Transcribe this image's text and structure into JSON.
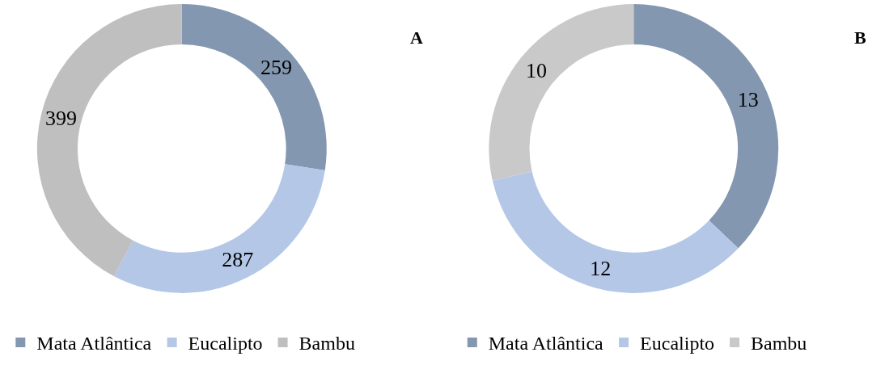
{
  "chart_data": [
    {
      "type": "donut",
      "title": "A",
      "categories": [
        "Mata Atlântica",
        "Eucalipto",
        "Bambu"
      ],
      "values": [
        259,
        287,
        399
      ],
      "colors": [
        "#8497b0",
        "#b4c7e7",
        "#bfbfbf"
      ],
      "data_labels": true,
      "legend": "bottom"
    },
    {
      "type": "donut",
      "title": "B",
      "categories": [
        "Mata Atlântica",
        "Eucalipto",
        "Bambu"
      ],
      "values": [
        13,
        12,
        10
      ],
      "colors": [
        "#8497b0",
        "#b4c7e7",
        "#c9c9c9"
      ],
      "data_labels": true,
      "legend": "bottom"
    }
  ]
}
